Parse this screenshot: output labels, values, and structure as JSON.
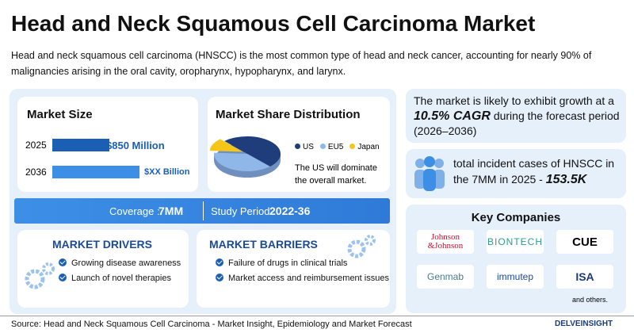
{
  "header": {
    "title": "Head and Neck Squamous Cell Carcinoma Market",
    "description": "Head and neck squamous cell carcinoma (HNSCC) is the most common type of head and neck cancer, accounting for nearly 90% of malignancies arising in the oral cavity, oropharynx, hypopharynx, and larynx."
  },
  "market_size": {
    "title": "Market Size",
    "rows": [
      {
        "year": "2025",
        "value": "$850 Million"
      },
      {
        "year": "2036",
        "value": "$XX Billion"
      }
    ]
  },
  "chart_data": {
    "type": "pie",
    "title": "Market Share Distribution",
    "categories": [
      "US",
      "EU5",
      "Japan"
    ],
    "values": [
      50,
      38,
      12
    ],
    "colors": [
      "#1f3d7a",
      "#8fb8e8",
      "#f5c518"
    ]
  },
  "market_share_note": "The US will dominate the overall market.",
  "coverage": {
    "label": "Coverage :",
    "value": "7MM",
    "period_label": "Study Period",
    "period_value": "2022-36"
  },
  "drivers": {
    "title": "MARKET DRIVERS",
    "items": [
      "Growing disease awareness",
      "Launch of novel therapies"
    ]
  },
  "barriers": {
    "title": "MARKET BARRIERS",
    "items": [
      "Failure of drugs in clinical trials",
      "Market access and reimbursement issues"
    ]
  },
  "cagr": {
    "before": "The market is likely to exhibit growth at a",
    "highlight": "10.5% CAGR",
    "after": "during the forecast period (2026–2036)"
  },
  "incidence": {
    "text": "total incident cases of HNSCC in the 7MM in 2025 -",
    "value": "153.5K"
  },
  "key_companies": {
    "title": "Key Companies",
    "companies": [
      "Johnson &Johnson",
      "BIONTECH",
      "CUE",
      "Genmab",
      "immutep",
      "ISA"
    ],
    "note": "and others."
  },
  "footer": {
    "source": "Source: Head and Neck Squamous Cell Carcinoma - Market Insight, Epidemiology and Market Forecast",
    "brand": "DELVEINSIGHT"
  }
}
